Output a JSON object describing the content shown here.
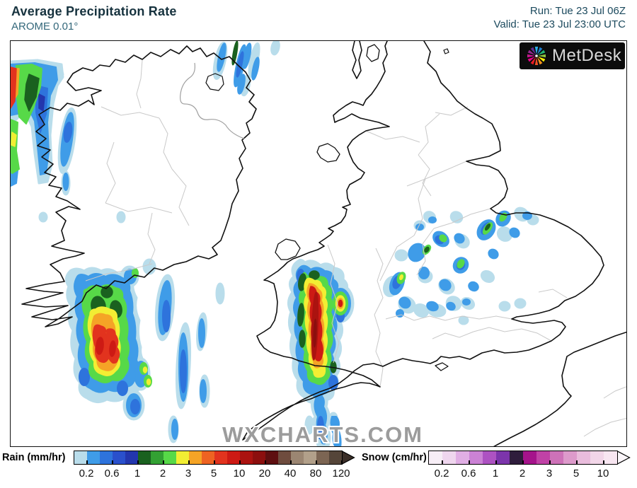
{
  "header": {
    "title": "Average Precipitation Rate",
    "model": "AROME 0.01°",
    "run": "Run: Tue 23 Jul 06Z",
    "valid": "Valid: Tue 23 Jul 23:00 UTC"
  },
  "logo": {
    "text": "MetDesk"
  },
  "watermark": "WXCHARTS.COM",
  "legend": {
    "rain": {
      "label": "Rain (mm/hr)",
      "ticks": [
        "0.2",
        "0.6",
        "1",
        "2",
        "3",
        "5",
        "10",
        "20",
        "40",
        "80",
        "120"
      ],
      "colors": [
        "#b9ddeb",
        "#3f9ce8",
        "#2e73dc",
        "#2a50cc",
        "#2336ad",
        "#1a611f",
        "#33a133",
        "#57d948",
        "#f2ee33",
        "#f5a426",
        "#ee6322",
        "#e2331e",
        "#cd1a14",
        "#ab1310",
        "#8c0f0e",
        "#5e0f10",
        "#6f4c3e",
        "#9b8672",
        "#b2a08a",
        "#7c6553",
        "#554539"
      ],
      "arrow_color": "#3b2f28"
    },
    "snow": {
      "label": "Snow (cm/hr)",
      "ticks": [
        "0.2",
        "0.6",
        "1",
        "2",
        "3",
        "5",
        "10"
      ],
      "colors": [
        "#f7eef6",
        "#efd6ee",
        "#e0aee4",
        "#cb82d5",
        "#ad52c2",
        "#7c35ab",
        "#2f1d3c",
        "#a5138b",
        "#c042a6",
        "#ce72b8",
        "#dd9acb",
        "#e9bcdc",
        "#f2d6e8",
        "#f8e6f1"
      ],
      "arrow_color": "#fbf6fa"
    }
  }
}
